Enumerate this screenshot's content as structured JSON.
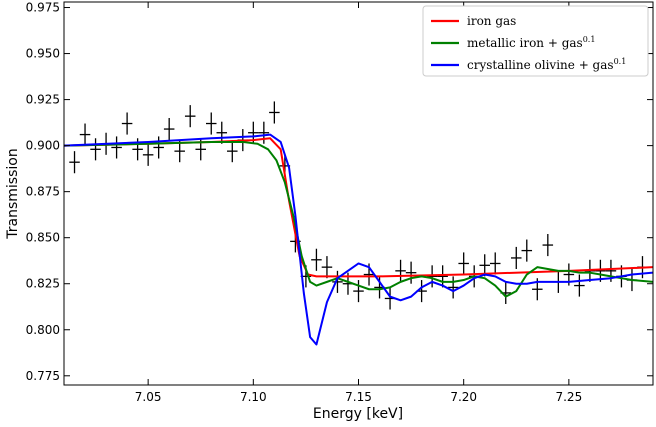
{
  "chart_data": {
    "type": "line",
    "title": "",
    "xlabel": "Energy  [keV]",
    "ylabel": "Transmission",
    "xlim": [
      7.01,
      7.29
    ],
    "ylim": [
      0.77,
      0.978
    ],
    "xticks": [
      "7.05",
      "7.10",
      "7.15",
      "7.20",
      "7.25"
    ],
    "xtick_values": [
      7.05,
      7.1,
      7.15,
      7.2,
      7.25
    ],
    "yticks": [
      "0.775",
      "0.800",
      "0.825",
      "0.850",
      "0.875",
      "0.900",
      "0.925",
      "0.950",
      "0.975"
    ],
    "ytick_values": [
      0.775,
      0.8,
      0.825,
      0.85,
      0.875,
      0.9,
      0.925,
      0.95,
      0.975
    ],
    "grid": false,
    "legend_position": "top-right",
    "series": [
      {
        "name": "iron gas",
        "name_sup": "",
        "color": "#ff0000",
        "x": [
          7.01,
          7.05,
          7.08,
          7.1,
          7.108,
          7.113,
          7.117,
          7.122,
          7.126,
          7.13,
          7.16,
          7.2,
          7.25,
          7.29
        ],
        "y": [
          0.9,
          0.901,
          0.902,
          0.903,
          0.904,
          0.898,
          0.87,
          0.84,
          0.83,
          0.829,
          0.829,
          0.83,
          0.832,
          0.834
        ]
      },
      {
        "name": "metallic iron + gas",
        "name_sup": "0.1",
        "color": "#008000",
        "x": [
          7.01,
          7.05,
          7.08,
          7.095,
          7.102,
          7.107,
          7.111,
          7.115,
          7.119,
          7.123,
          7.127,
          7.13,
          7.135,
          7.14,
          7.145,
          7.15,
          7.155,
          7.16,
          7.165,
          7.17,
          7.175,
          7.18,
          7.185,
          7.19,
          7.195,
          7.2,
          7.205,
          7.21,
          7.215,
          7.22,
          7.225,
          7.23,
          7.235,
          7.24,
          7.245,
          7.25,
          7.255,
          7.26,
          7.265,
          7.27,
          7.275,
          7.28,
          7.29
        ],
        "y": [
          0.9,
          0.901,
          0.902,
          0.902,
          0.901,
          0.898,
          0.892,
          0.88,
          0.862,
          0.84,
          0.826,
          0.824,
          0.826,
          0.828,
          0.826,
          0.824,
          0.822,
          0.822,
          0.823,
          0.826,
          0.828,
          0.829,
          0.828,
          0.826,
          0.826,
          0.827,
          0.829,
          0.828,
          0.824,
          0.818,
          0.821,
          0.83,
          0.834,
          0.833,
          0.832,
          0.832,
          0.831,
          0.831,
          0.83,
          0.829,
          0.828,
          0.827,
          0.826
        ]
      },
      {
        "name": "crystalline olivine + gas",
        "name_sup": "0.1",
        "color": "#0000ff",
        "x": [
          7.01,
          7.05,
          7.08,
          7.1,
          7.108,
          7.113,
          7.117,
          7.12,
          7.124,
          7.127,
          7.13,
          7.135,
          7.14,
          7.145,
          7.15,
          7.155,
          7.16,
          7.165,
          7.17,
          7.175,
          7.18,
          7.185,
          7.19,
          7.195,
          7.2,
          7.205,
          7.21,
          7.215,
          7.22,
          7.225,
          7.23,
          7.235,
          7.24,
          7.25,
          7.26,
          7.27,
          7.28,
          7.29
        ],
        "y": [
          0.9,
          0.902,
          0.904,
          0.905,
          0.906,
          0.902,
          0.888,
          0.862,
          0.82,
          0.796,
          0.792,
          0.815,
          0.828,
          0.832,
          0.836,
          0.834,
          0.826,
          0.818,
          0.816,
          0.818,
          0.823,
          0.826,
          0.824,
          0.821,
          0.824,
          0.828,
          0.83,
          0.829,
          0.826,
          0.825,
          0.825,
          0.826,
          0.826,
          0.826,
          0.827,
          0.828,
          0.83,
          0.831
        ]
      }
    ],
    "data_points": {
      "name": "",
      "color": "#000000",
      "x": [
        7.015,
        7.02,
        7.025,
        7.03,
        7.035,
        7.04,
        7.045,
        7.05,
        7.055,
        7.06,
        7.065,
        7.07,
        7.075,
        7.08,
        7.085,
        7.09,
        7.095,
        7.1,
        7.105,
        7.11,
        7.115,
        7.12,
        7.125,
        7.13,
        7.135,
        7.14,
        7.145,
        7.15,
        7.155,
        7.16,
        7.165,
        7.17,
        7.175,
        7.18,
        7.185,
        7.19,
        7.195,
        7.2,
        7.205,
        7.21,
        7.215,
        7.22,
        7.225,
        7.23,
        7.235,
        7.24,
        7.245,
        7.25,
        7.255,
        7.26,
        7.265,
        7.27,
        7.275,
        7.28,
        7.285
      ],
      "y": [
        0.891,
        0.906,
        0.898,
        0.901,
        0.899,
        0.912,
        0.898,
        0.895,
        0.899,
        0.909,
        0.897,
        0.916,
        0.898,
        0.912,
        0.907,
        0.897,
        0.903,
        0.907,
        0.907,
        0.918,
        0.889,
        0.848,
        0.829,
        0.838,
        0.834,
        0.826,
        0.825,
        0.821,
        0.83,
        0.823,
        0.817,
        0.832,
        0.831,
        0.821,
        0.829,
        0.829,
        0.823,
        0.836,
        0.829,
        0.835,
        0.836,
        0.82,
        0.839,
        0.843,
        0.822,
        0.846,
        0.826,
        0.83,
        0.824,
        0.832,
        0.832,
        0.832,
        0.829,
        0.827,
        0.834
      ],
      "yerr": [
        0.006,
        0.006,
        0.006,
        0.006,
        0.006,
        0.006,
        0.006,
        0.006,
        0.006,
        0.006,
        0.006,
        0.006,
        0.006,
        0.006,
        0.006,
        0.006,
        0.006,
        0.006,
        0.006,
        0.006,
        0.006,
        0.006,
        0.006,
        0.006,
        0.006,
        0.006,
        0.006,
        0.006,
        0.006,
        0.006,
        0.006,
        0.006,
        0.006,
        0.006,
        0.006,
        0.006,
        0.006,
        0.006,
        0.006,
        0.006,
        0.006,
        0.006,
        0.006,
        0.006,
        0.006,
        0.006,
        0.006,
        0.006,
        0.006,
        0.006,
        0.006,
        0.006,
        0.006,
        0.006,
        0.006
      ],
      "xerr": 0.0025
    }
  }
}
